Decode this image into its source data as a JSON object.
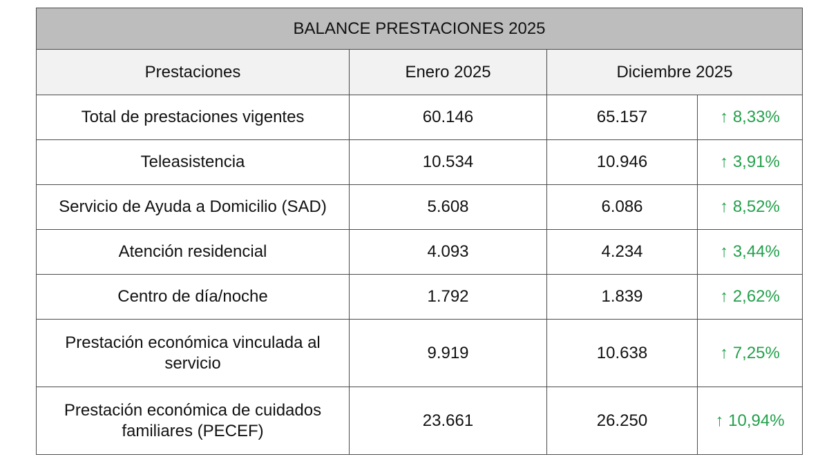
{
  "table": {
    "title": "BALANCE PRESTACIONES 2025",
    "headers": {
      "prestaciones": "Prestaciones",
      "enero": "Enero 2025",
      "diciembre": "Diciembre 2025"
    },
    "arrow": "↑",
    "change_color": "#22a04b",
    "rows": [
      {
        "label": "Total de prestaciones vigentes",
        "enero": "60.146",
        "diciembre": "65.157",
        "change": "8,33%"
      },
      {
        "label": "Teleasistencia",
        "enero": "10.534",
        "diciembre": "10.946",
        "change": "3,91%"
      },
      {
        "label": "Servicio de Ayuda a Domicilio (SAD)",
        "enero": "5.608",
        "diciembre": "6.086",
        "change": "8,52%"
      },
      {
        "label": "Atención residencial",
        "enero": "4.093",
        "diciembre": "4.234",
        "change": "3,44%"
      },
      {
        "label": "Centro de día/noche",
        "enero": "1.792",
        "diciembre": "1.839",
        "change": "2,62%"
      },
      {
        "label": "Prestación económica vinculada al servicio",
        "enero": "9.919",
        "diciembre": "10.638",
        "change": "7,25%"
      },
      {
        "label": "Prestación económica de cuidados familiares (PECEF)",
        "enero": "23.661",
        "diciembre": "26.250",
        "change": "10,94%"
      }
    ]
  }
}
